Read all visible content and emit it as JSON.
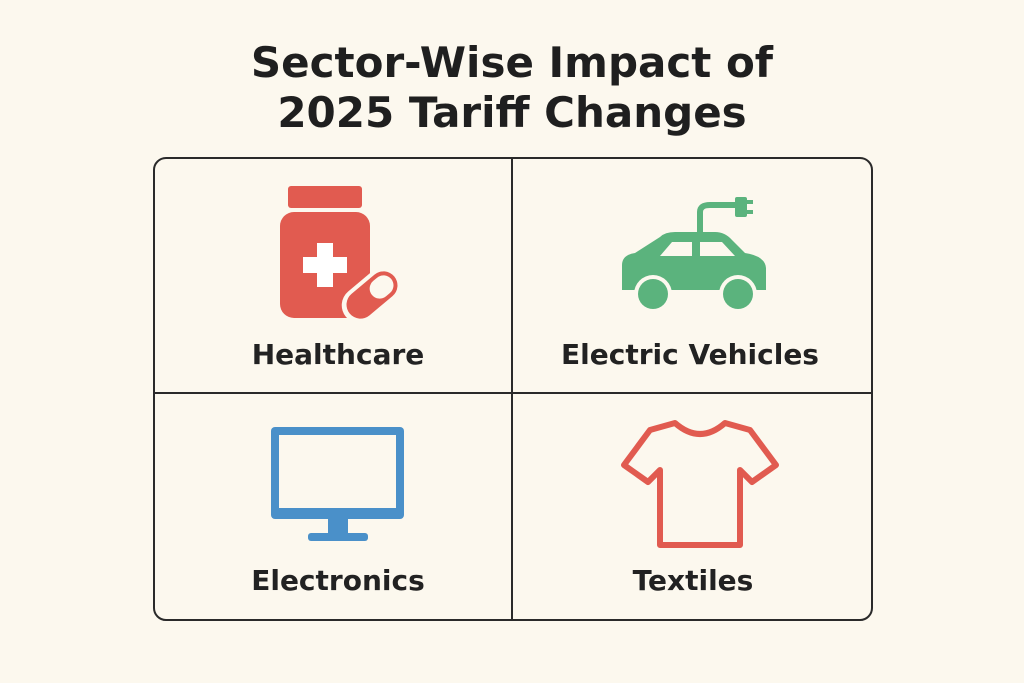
{
  "title": "Sector-Wise Impact of 2025 Tariff Changes",
  "sectors": [
    {
      "label": "Healthcare"
    },
    {
      "label": "Electric Vehicles"
    },
    {
      "label": "Electronics"
    },
    {
      "label": "Textiles"
    }
  ]
}
